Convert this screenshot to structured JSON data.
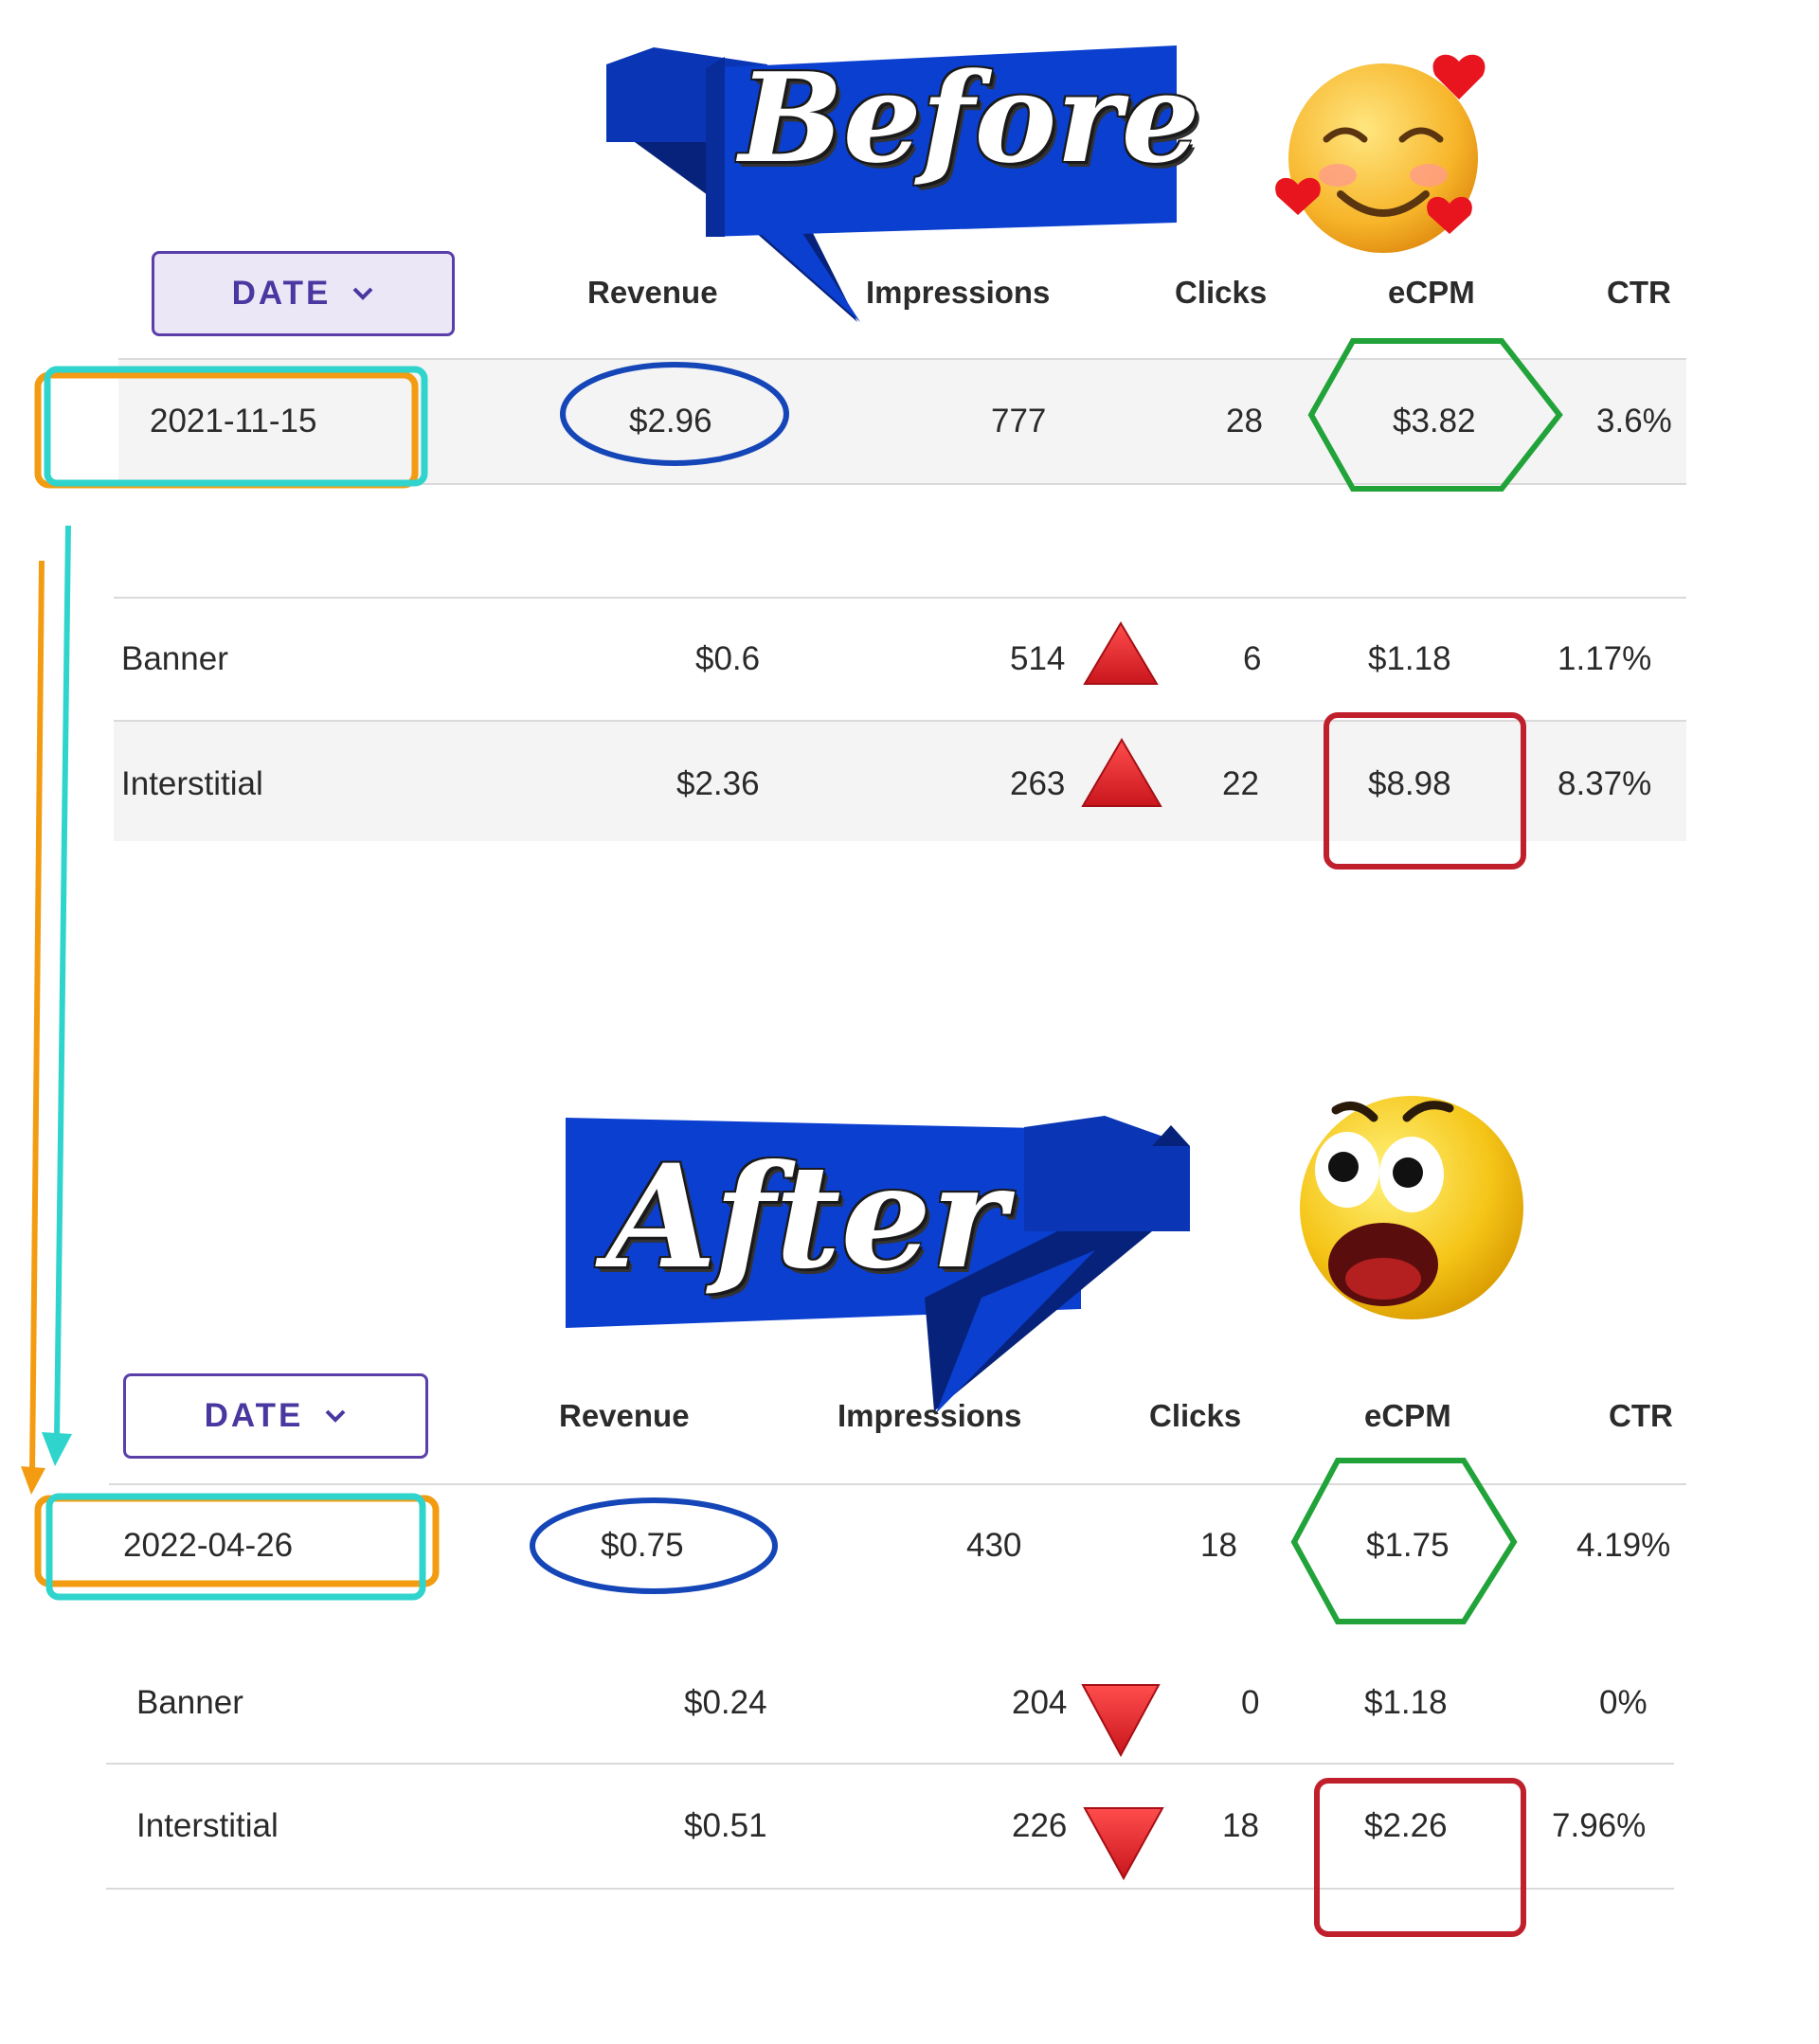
{
  "before": {
    "ribbon_text": "Before",
    "date_button_label": "DATE",
    "headers": [
      "Revenue",
      "Impressions",
      "Clicks",
      "eCPM",
      "CTR"
    ],
    "summary": {
      "date": "2021-11-15",
      "revenue": "$2.96",
      "impressions": "777",
      "clicks": "28",
      "ecpm": "$3.82",
      "ctr": "3.6%"
    },
    "banner": {
      "label": "Banner",
      "revenue": "$0.6",
      "impressions": "514",
      "clicks": "6",
      "ecpm": "$1.18",
      "ctr": "1.17%"
    },
    "interstitial": {
      "label": "Interstitial",
      "revenue": "$2.36",
      "impressions": "263",
      "clicks": "22",
      "ecpm": "$8.98",
      "ctr": "8.37%"
    }
  },
  "after": {
    "ribbon_text": "After",
    "date_button_label": "DATE",
    "headers": [
      "Revenue",
      "Impressions",
      "Clicks",
      "eCPM",
      "CTR"
    ],
    "summary": {
      "date": "2022-04-26",
      "revenue": "$0.75",
      "impressions": "430",
      "clicks": "18",
      "ecpm": "$1.75",
      "ctr": "4.19%"
    },
    "banner": {
      "label": "Banner",
      "revenue": "$0.24",
      "impressions": "204",
      "clicks": "0",
      "ecpm": "$1.18",
      "ctr": "0%"
    },
    "interstitial": {
      "label": "Interstitial",
      "revenue": "$0.51",
      "impressions": "226",
      "clicks": "18",
      "ecpm": "$2.26",
      "ctr": "7.96%"
    }
  },
  "icons": {
    "dropdown": "chevron-down-icon",
    "trend_up": "red-triangle-up-icon",
    "trend_down": "red-triangle-down-icon",
    "happy_face": "smiling-face-with-hearts-icon",
    "shocked_face": "shocked-face-icon"
  },
  "colors": {
    "orange": "#f39c12",
    "cyan": "#2fd4cc",
    "blue_ellipse": "#1546b8",
    "green_hexagon": "#22a33a",
    "red_box": "#c0202c",
    "ribbon_blue": "#0b3fd0",
    "purple": "#4a37a0"
  }
}
